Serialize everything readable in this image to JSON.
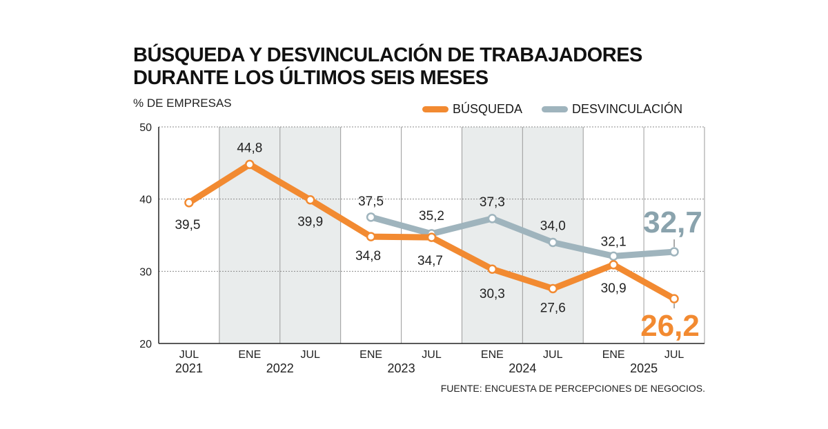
{
  "title_line1": "BÚSQUEDA Y DESVINCULACIÓN DE TRABAJADORES",
  "title_line2": "DURANTE LOS ÚLTIMOS SEIS MESES",
  "subtitle": "% DE EMPRESAS",
  "source": "FUENTE: ENCUESTA DE PERCEPCIONES DE NEGOCIOS.",
  "chart_data": {
    "type": "line",
    "categories": [
      "JUL",
      "ENE",
      "JUL",
      "ENE",
      "JUL",
      "ENE",
      "JUL",
      "ENE",
      "JUL"
    ],
    "years": [
      {
        "label": "2021",
        "from": 0,
        "to": 0
      },
      {
        "label": "2022",
        "from": 1,
        "to": 2
      },
      {
        "label": "2023",
        "from": 3,
        "to": 4
      },
      {
        "label": "2024",
        "from": 5,
        "to": 6
      },
      {
        "label": "2025",
        "from": 7,
        "to": 8
      }
    ],
    "shaded_categories": [
      1,
      2,
      5,
      6
    ],
    "ylim": [
      20,
      50
    ],
    "yticks": [
      20,
      30,
      40,
      50
    ],
    "grid": true,
    "legend_position": "top-right",
    "series": [
      {
        "name": "BÚSQUEDA",
        "color": "#f28a31",
        "values": [
          39.5,
          44.8,
          39.9,
          34.8,
          34.7,
          30.3,
          27.6,
          30.9,
          26.2
        ],
        "labels": [
          "39,5",
          "44,8",
          "39,9",
          "34,8",
          "34,7",
          "30,3",
          "27,6",
          "30,9",
          "26,2"
        ]
      },
      {
        "name": "DESVINCULACIÓN",
        "color": "#9fb4bd",
        "values": [
          null,
          null,
          null,
          37.5,
          35.2,
          37.3,
          34.0,
          32.1,
          32.7
        ],
        "labels": [
          "",
          "",
          "",
          "37,5",
          "35,2",
          "37,3",
          "34,0",
          "32,1",
          "32,7"
        ]
      }
    ],
    "highlight_colors": {
      "busqueda": "#f28a31",
      "desvinculacion": "#8aa3ad"
    }
  }
}
